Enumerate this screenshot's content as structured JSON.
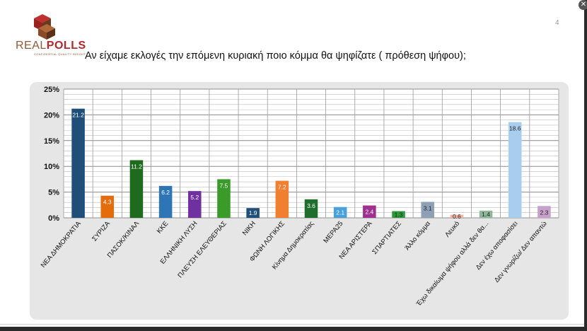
{
  "logo": {
    "real": "REAL",
    "polls": "POLLS",
    "tagline": "CONFIDENTIAL QUALITY INSIGHT"
  },
  "page_number": "4",
  "title": "Αν είχαμε εκλογές την επόμενη κυριακή ποιο κόμμα θα ψηφίζατε ( πρόθεση ψήφου);",
  "chart_data": {
    "type": "bar",
    "title": "Αν είχαμε εκλογές την επόμενη κυριακή ποιο κόμμα θα ψηφίζατε ( πρόθεση ψήφου);",
    "xlabel": "",
    "ylabel": "",
    "ylim": [
      0,
      25
    ],
    "yticks": [
      "0%",
      "5%",
      "10%",
      "15%",
      "20%",
      "25%"
    ],
    "grid": true,
    "categories": [
      "ΝΕΑ ΔΗΜΟΚΡΑΤΙΑ",
      "ΣΥΡΙΖΑ",
      "ΠΑΣΟΚ/ΚΙΝΑΛ",
      "ΚΚΕ",
      "ΕΛΛΗΝΙΚΗ ΛΥΣΗ",
      "ΠΛΕΥΣΗ ΕΛΕΥΘΕΡΙΑΣ",
      "ΝΙΚΗ",
      "ΦΩΝΗ ΛΟΓΙΚΗΣ",
      "Κίνημα Δημοκρατίας",
      "ΜΕΡΑ25",
      "ΝΕΑ ΑΡΙΣΤΕΡΑ",
      "ΣΠΑΡΤΙΑΤΕΣ",
      "Άλλο κόμμα",
      "Λευκό",
      "Έχω δικαίωμα ψήφου αλλά δεν θα...",
      "Δεν έχω αποφασίσει",
      "Δεν γνωρίζω/ Δεν απαντώ"
    ],
    "values": [
      21.2,
      4.3,
      11.2,
      6.2,
      5.2,
      7.5,
      1.9,
      7.2,
      3.6,
      2.1,
      2.4,
      1.3,
      3.1,
      0.6,
      1.4,
      18.6,
      2.3
    ],
    "labels": [
      "21.2",
      "4.3",
      "11.2",
      "6.2",
      "5.2",
      "7.5",
      "1.9",
      "7.2",
      "3.6",
      "2.1",
      "2.4",
      "1.3",
      "3.1",
      "0.6",
      "1.4",
      "18.6",
      "2.3"
    ],
    "colors": [
      "#1f4e79",
      "#e46c0a",
      "#1e6b1e",
      "#2e75b6",
      "#7030a0",
      "#3a9a2a",
      "#1f4e79",
      "#f08030",
      "#1f6e2e",
      "#4aa0dc",
      "#a03090",
      "#2e9a3a",
      "#8ea0b4",
      "#f4b4a0",
      "#8fb89a",
      "#a8cdee",
      "#c8a0cc"
    ],
    "label_colors": [
      "#ffffff",
      "#ffffff",
      "#ffffff",
      "#ffffff",
      "#ffffff",
      "#ffffff",
      "#ffffff",
      "#ffffff",
      "#ffffff",
      "#ffffff",
      "#ffffff",
      "#222222",
      "#222222",
      "#222222",
      "#222222",
      "#222222",
      "#222222"
    ]
  }
}
